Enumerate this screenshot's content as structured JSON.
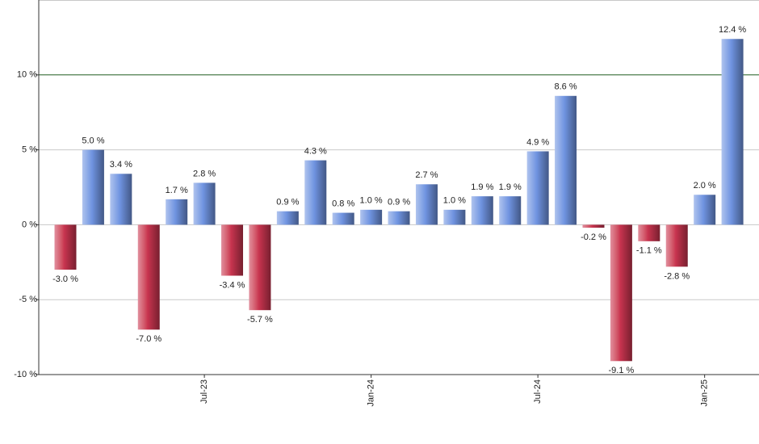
{
  "chart_data": {
    "type": "bar",
    "categories": [
      null,
      null,
      null,
      null,
      null,
      "Jul-23",
      null,
      null,
      null,
      null,
      null,
      "Jan-24",
      null,
      null,
      null,
      null,
      null,
      "Jul-24",
      null,
      null,
      null,
      null,
      null,
      "Jan-25",
      null
    ],
    "values": [
      -3.0,
      5.0,
      3.4,
      -7.0,
      1.7,
      2.8,
      -3.4,
      -5.7,
      0.9,
      4.3,
      0.8,
      1.0,
      0.9,
      2.7,
      1.0,
      1.9,
      1.9,
      4.9,
      8.6,
      -0.2,
      -9.1,
      -1.1,
      -2.8,
      2.0,
      12.4
    ],
    "value_labels": [
      "-3.0 %",
      "5.0 %",
      "3.4 %",
      "-7.0 %",
      "1.7 %",
      "2.8 %",
      "-3.4 %",
      "-5.7 %",
      "0.9 %",
      "4.3 %",
      "0.8 %",
      "1.0 %",
      "0.9 %",
      "2.7 %",
      "1.0 %",
      "1.9 %",
      "1.9 %",
      "4.9 %",
      "8.6 %",
      "-0.2 %",
      "-9.1 %",
      "-1.1 %",
      "-2.8 %",
      "2.0 %",
      "12.4 %"
    ],
    "positive_color": "#6f93e0",
    "negative_color": "#c8344f",
    "ylim": [
      -10,
      15
    ],
    "yticks": [
      {
        "value": -10,
        "label": "-10 %"
      },
      {
        "value": -5,
        "label": "-5 %"
      },
      {
        "value": 0,
        "label": "0 %"
      },
      {
        "value": 5,
        "label": "5 %"
      },
      {
        "value": 10,
        "label": "10 %"
      }
    ],
    "grid": true,
    "reference_line": {
      "value": 10,
      "color": "#2e6b2e"
    }
  }
}
